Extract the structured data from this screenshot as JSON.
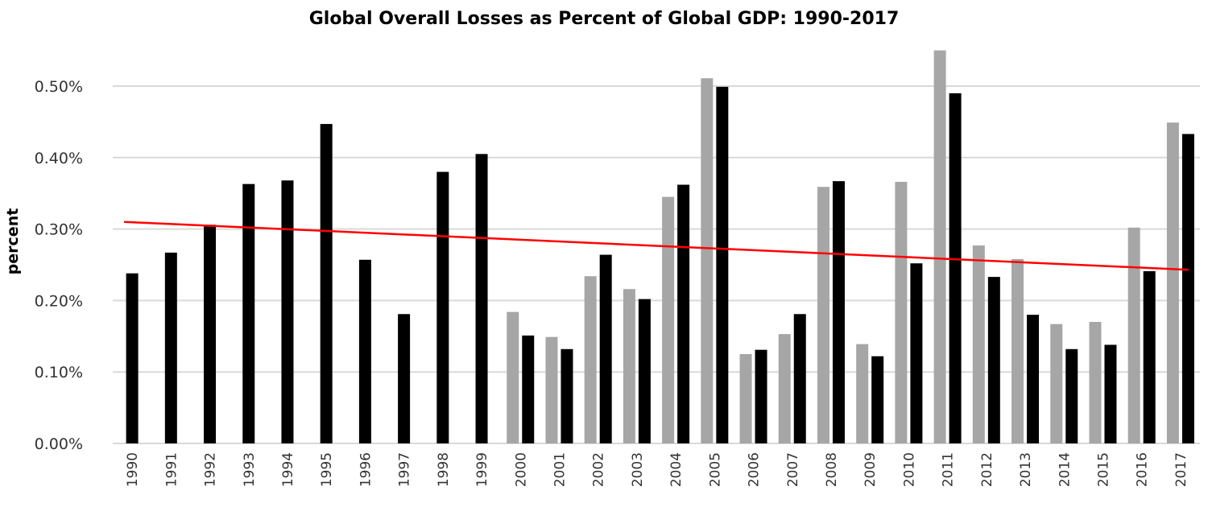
{
  "chart_data": {
    "type": "bar",
    "title": "Global Overall Losses as Percent of Global GDP: 1990-2017",
    "xlabel": "",
    "ylabel": "percent",
    "ylim": [
      0,
      0.55
    ],
    "yticks": [
      0,
      0.1,
      0.2,
      0.3,
      0.4,
      0.5
    ],
    "ytick_labels": [
      "0.00%",
      "0.10%",
      "0.20%",
      "0.30%",
      "0.40%",
      "0.50%"
    ],
    "grid": true,
    "legend": "none",
    "categories": [
      "1990",
      "1991",
      "1992",
      "1993",
      "1994",
      "1995",
      "1996",
      "1997",
      "1998",
      "1999",
      "2000",
      "2001",
      "2002",
      "2003",
      "2004",
      "2005",
      "2006",
      "2007",
      "2008",
      "2009",
      "2010",
      "2011",
      "2012",
      "2013",
      "2014",
      "2015",
      "2016",
      "2017"
    ],
    "series": [
      {
        "name": "gray series",
        "color": "#a6a6a6",
        "values": [
          null,
          null,
          null,
          null,
          null,
          null,
          null,
          null,
          null,
          null,
          0.184,
          0.149,
          0.234,
          0.216,
          0.345,
          0.511,
          0.125,
          0.153,
          0.359,
          0.139,
          0.366,
          0.55,
          0.277,
          0.258,
          0.167,
          0.17,
          0.302,
          0.449
        ]
      },
      {
        "name": "black series",
        "color": "#000000",
        "values": [
          0.238,
          0.267,
          0.306,
          0.363,
          0.368,
          0.447,
          0.257,
          0.181,
          0.38,
          0.405,
          0.151,
          0.132,
          0.264,
          0.202,
          0.362,
          0.499,
          0.131,
          0.181,
          0.367,
          0.122,
          0.252,
          0.49,
          0.233,
          0.18,
          0.132,
          0.138,
          0.241,
          0.433
        ]
      }
    ],
    "trendline": {
      "color": "#ff0000",
      "start": {
        "x": "1990",
        "y": 0.31
      },
      "end": {
        "x": "2017",
        "y": 0.243
      }
    }
  }
}
